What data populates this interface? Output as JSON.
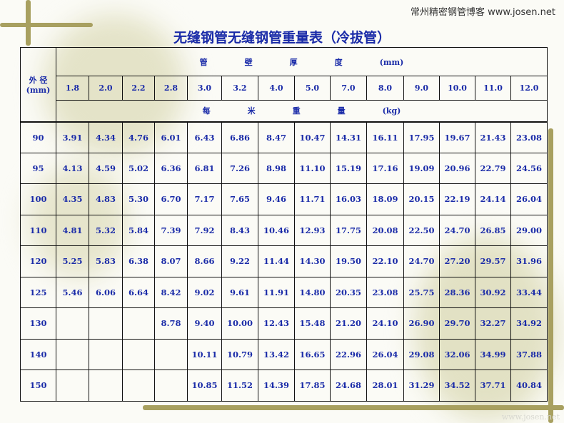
{
  "site_caption": "常州精密钢管博客 www.josen.net",
  "title": "无缝钢管无缝钢管重量表（冷拔管）",
  "watermark": "www.josen.net",
  "table": {
    "od_header": "外 径\n(mm)",
    "thickness_header": [
      "管",
      "壁",
      "厚",
      "度",
      "(mm)"
    ],
    "weight_header": [
      "每",
      "米",
      "重",
      "量",
      "(kg)"
    ],
    "thicknesses": [
      "1.8",
      "2.0",
      "2.2",
      "2.8",
      "3.0",
      "3.2",
      "4.0",
      "5.0",
      "7.0",
      "8.0",
      "9.0",
      "10.0",
      "11.0",
      "12.0"
    ],
    "rows": [
      {
        "od": "90",
        "values": [
          "3.91",
          "4.34",
          "4.76",
          "6.01",
          "6.43",
          "6.86",
          "8.47",
          "10.47",
          "14.31",
          "16.11",
          "17.95",
          "19.67",
          "21.43",
          "23.08"
        ]
      },
      {
        "od": "95",
        "values": [
          "4.13",
          "4.59",
          "5.02",
          "6.36",
          "6.81",
          "7.26",
          "8.98",
          "11.10",
          "15.19",
          "17.16",
          "19.09",
          "20.96",
          "22.79",
          "24.56"
        ]
      },
      {
        "od": "100",
        "values": [
          "4.35",
          "4.83",
          "5.30",
          "6.70",
          "7.17",
          "7.65",
          "9.46",
          "11.71",
          "16.03",
          "18.09",
          "20.15",
          "22.19",
          "24.14",
          "26.04"
        ]
      },
      {
        "od": "110",
        "values": [
          "4.81",
          "5.32",
          "5.84",
          "7.39",
          "7.92",
          "8.43",
          "10.46",
          "12.93",
          "17.75",
          "20.08",
          "22.50",
          "24.70",
          "26.85",
          "29.00"
        ]
      },
      {
        "od": "120",
        "values": [
          "5.25",
          "5.83",
          "6.38",
          "8.07",
          "8.66",
          "9.22",
          "11.44",
          "14.30",
          "19.50",
          "22.10",
          "24.70",
          "27.20",
          "29.57",
          "31.96"
        ]
      },
      {
        "od": "125",
        "values": [
          "5.46",
          "6.06",
          "6.64",
          "8.42",
          "9.02",
          "9.61",
          "11.91",
          "14.80",
          "20.35",
          "23.08",
          "25.75",
          "28.36",
          "30.92",
          "33.44"
        ]
      },
      {
        "od": "130",
        "values": [
          "",
          "",
          "",
          "8.78",
          "9.40",
          "10.00",
          "12.43",
          "15.48",
          "21.20",
          "24.10",
          "26.90",
          "29.70",
          "32.27",
          "34.92"
        ]
      },
      {
        "od": "140",
        "values": [
          "",
          "",
          "",
          "",
          "10.11",
          "10.79",
          "13.42",
          "16.65",
          "22.96",
          "26.04",
          "29.08",
          "32.06",
          "34.99",
          "37.88"
        ]
      },
      {
        "od": "150",
        "values": [
          "",
          "",
          "",
          "",
          "10.85",
          "11.52",
          "14.39",
          "17.85",
          "24.68",
          "28.01",
          "31.29",
          "34.52",
          "37.71",
          "40.84"
        ]
      }
    ]
  }
}
